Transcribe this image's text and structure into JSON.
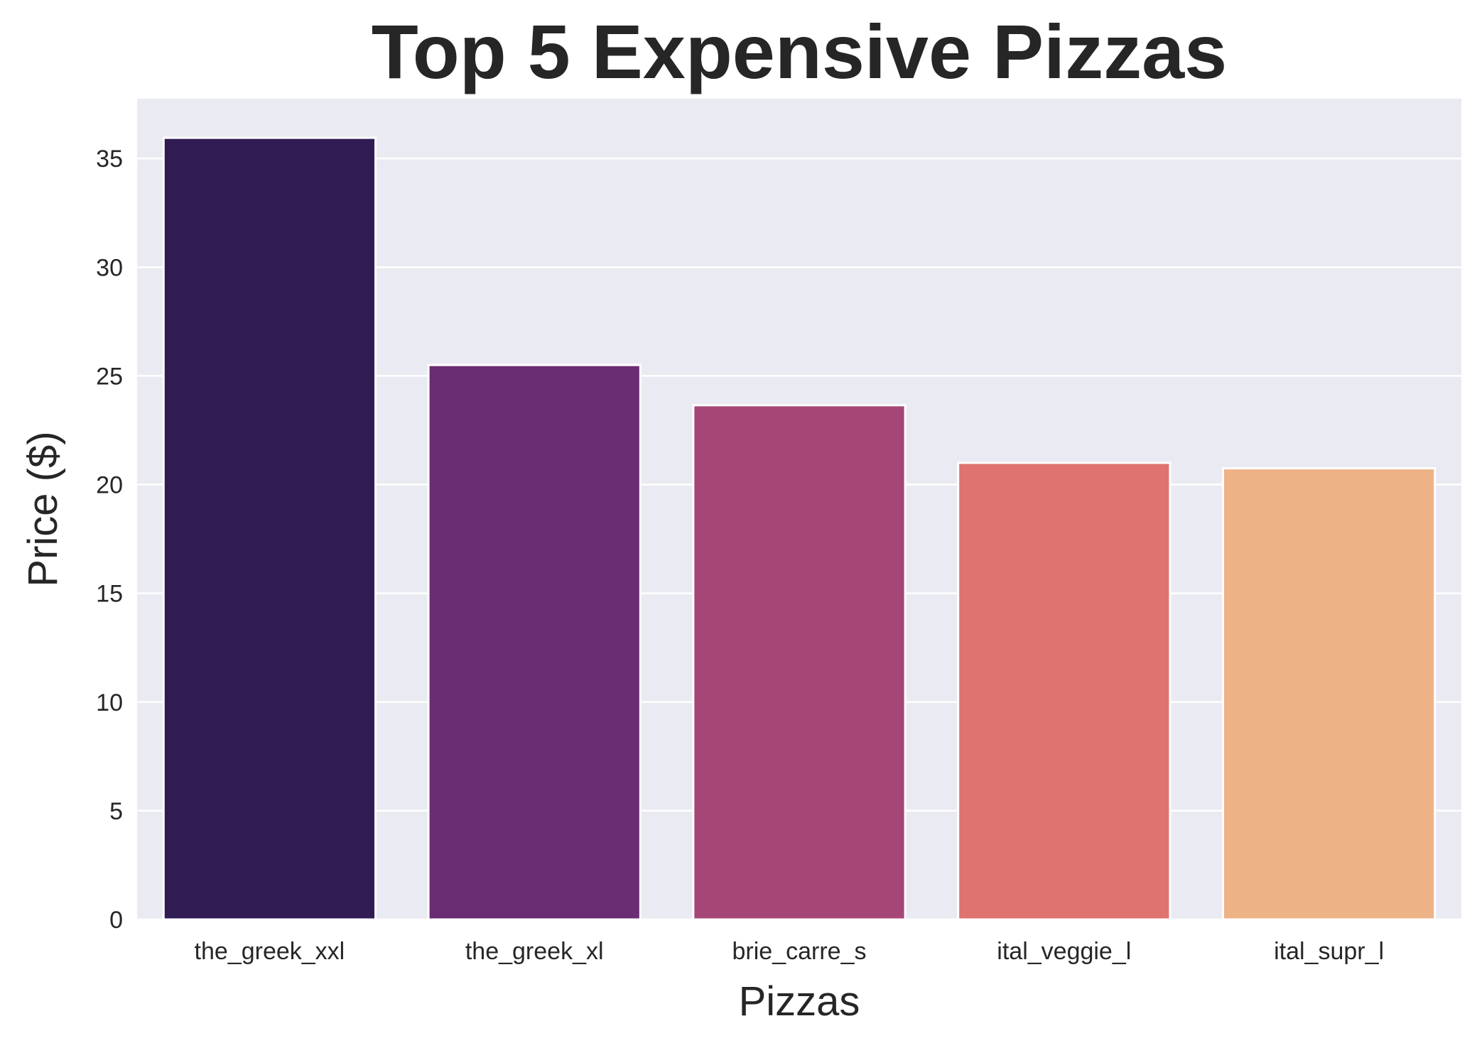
{
  "chart_data": {
    "type": "bar",
    "title": "Top 5 Expensive Pizzas",
    "xlabel": "Pizzas",
    "ylabel": "Price ($)",
    "categories": [
      "the_greek_xxl",
      "the_greek_xl",
      "brie_carre_s",
      "ital_veggie_l",
      "ital_supr_l"
    ],
    "values": [
      35.95,
      25.5,
      23.65,
      21.0,
      20.75
    ],
    "colors": [
      "#301b53",
      "#6a2c73",
      "#a54677",
      "#df736f",
      "#eeb287"
    ],
    "yticks": [
      0,
      5,
      10,
      15,
      20,
      25,
      30,
      35
    ],
    "ylim": [
      0,
      37.75
    ],
    "grid": true,
    "background": "#eaeaf2"
  }
}
